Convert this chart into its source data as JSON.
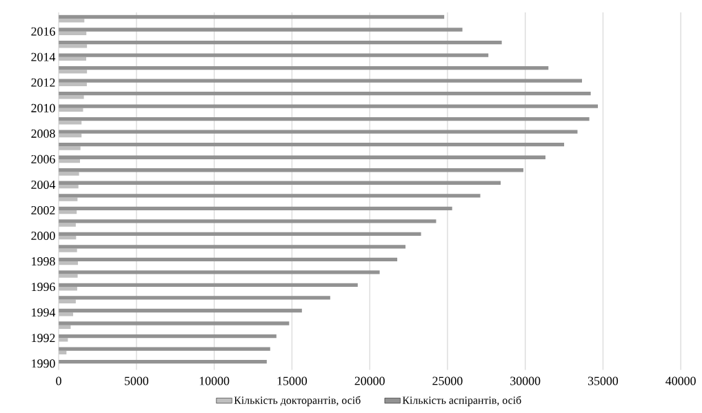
{
  "chart_data": {
    "type": "bar",
    "orientation": "horizontal",
    "categories": [
      null,
      "2016",
      null,
      "2014",
      null,
      "2012",
      null,
      "2010",
      null,
      "2008",
      null,
      "2006",
      null,
      "2004",
      null,
      "2002",
      null,
      "2000",
      null,
      "1998",
      null,
      "1996",
      null,
      "1994",
      null,
      "1992",
      null,
      "1990"
    ],
    "series": [
      {
        "name": "Кількість докторантів, осіб",
        "color": "#bfbfbf",
        "values": [
          1650,
          1780,
          1820,
          1770,
          1820,
          1810,
          1620,
          1570,
          1470,
          1470,
          1400,
          1370,
          1310,
          1270,
          1210,
          1160,
          1100,
          1120,
          1180,
          1240,
          1220,
          1190,
          1100,
          930,
          770,
          590,
          500,
          null
        ]
      },
      {
        "name": "Кількість аспірантів, осіб",
        "color": "#929292",
        "values": [
          24790,
          25960,
          28490,
          27630,
          31490,
          33650,
          34210,
          34670,
          34120,
          33360,
          32500,
          31300,
          29880,
          28420,
          27110,
          25300,
          24270,
          23300,
          22300,
          21770,
          20640,
          19230,
          17460,
          15640,
          14820,
          14000,
          13600,
          13380
        ]
      }
    ],
    "xlim": [
      0,
      40000
    ],
    "xticks": [
      0,
      5000,
      10000,
      15000,
      20000,
      25000,
      30000,
      35000,
      40000
    ],
    "grid": "x",
    "legend": "bottom"
  }
}
